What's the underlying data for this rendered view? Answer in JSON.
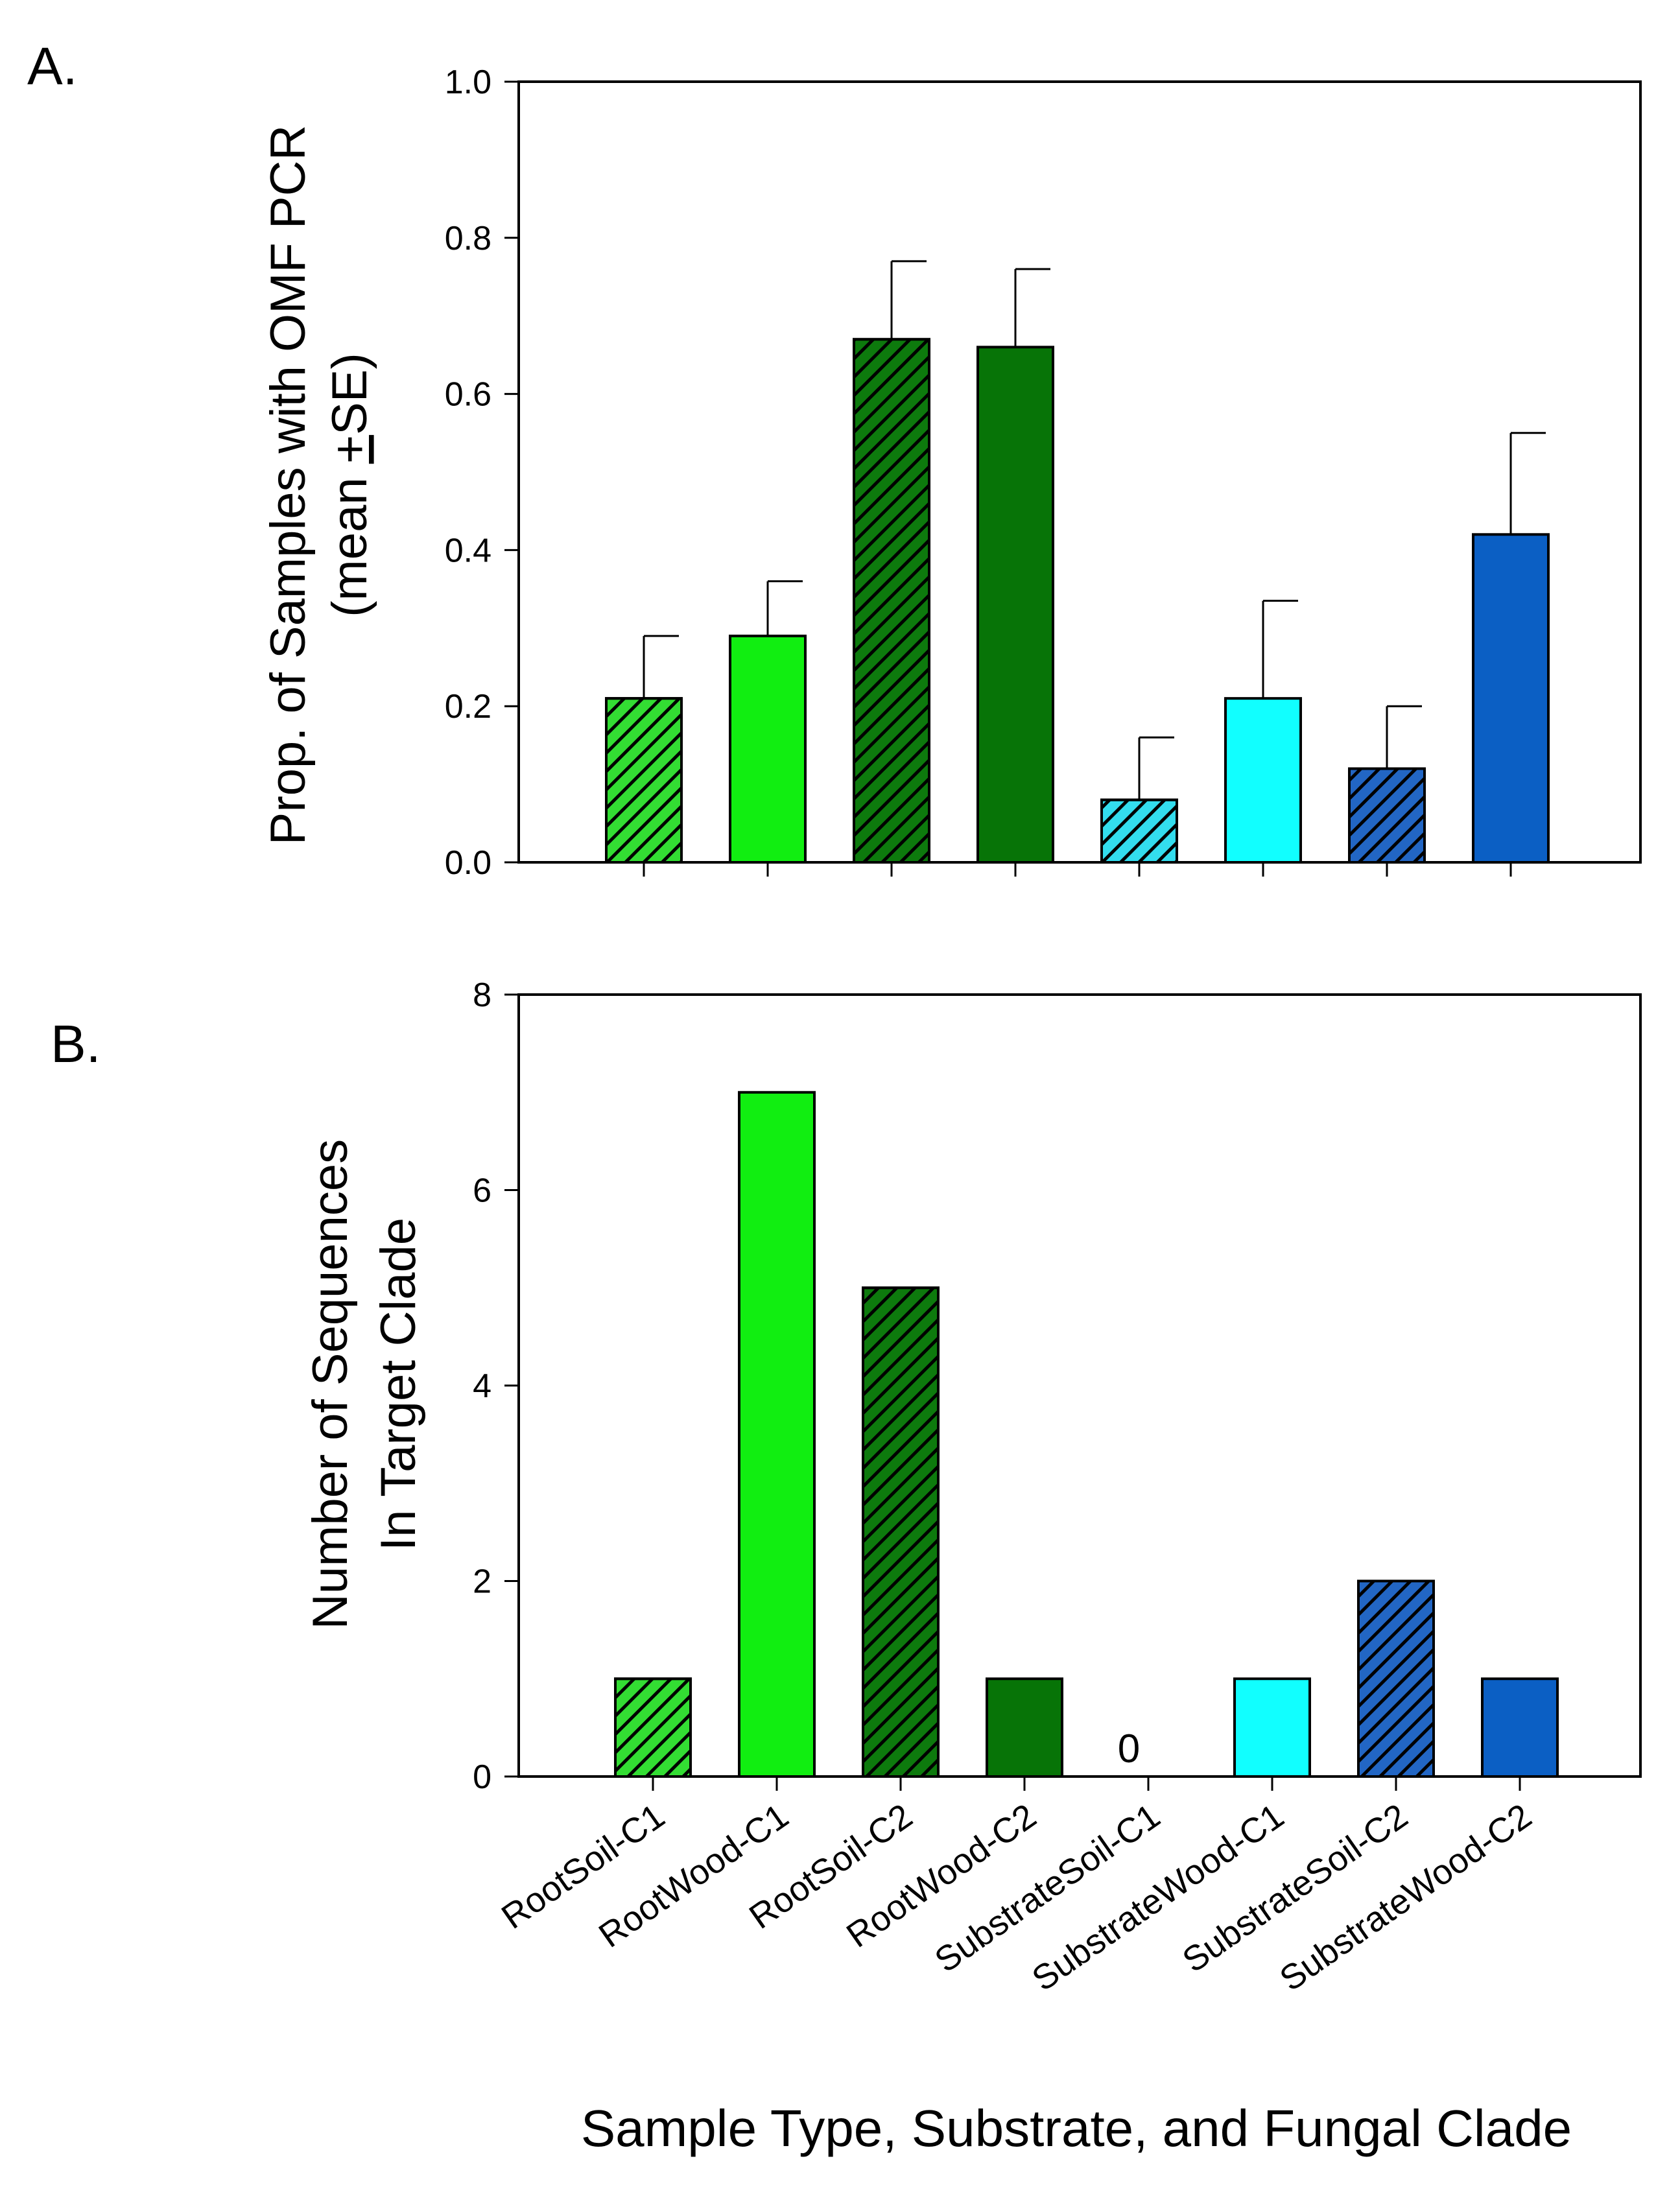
{
  "xlabel": "Sample Type, Substrate, and Fungal Clade",
  "categories": [
    "RootSoil-C1",
    "RootWood-C1",
    "RootSoil-C2",
    "RootWood-C2",
    "SubstrateSoil-C1",
    "SubstrateWood-C1",
    "SubstrateSoil-C2",
    "SubstrateWood-C2"
  ],
  "bar_styles": [
    {
      "color": "#33dd33",
      "hatched": true
    },
    {
      "color": "#11ee11",
      "hatched": false
    },
    {
      "color": "#0d7a0d",
      "hatched": true
    },
    {
      "color": "#077407",
      "hatched": false
    },
    {
      "color": "#33ddee",
      "hatched": true
    },
    {
      "color": "#11ffff",
      "hatched": false
    },
    {
      "color": "#2266c4",
      "hatched": true
    },
    {
      "color": "#0b5fc4",
      "hatched": false
    }
  ],
  "chart_data": [
    {
      "panel": "A.",
      "type": "bar",
      "title": "",
      "ylabel_line1": "Prop. of Samples with OMF PCR",
      "ylabel_line2_pre": "(mean ",
      "ylabel_line2_pm": "+",
      "ylabel_line2_post": "SE)",
      "ylim": [
        0,
        1.0
      ],
      "yticks": [
        "0.0",
        "0.2",
        "0.4",
        "0.6",
        "0.8",
        "1.0"
      ],
      "values": [
        0.21,
        0.29,
        0.67,
        0.66,
        0.08,
        0.21,
        0.12,
        0.42
      ],
      "errors": [
        0.08,
        0.07,
        0.1,
        0.1,
        0.08,
        0.125,
        0.08,
        0.13
      ]
    },
    {
      "panel": "B.",
      "type": "bar",
      "title": "",
      "ylabel_line1": "Number of Sequences",
      "ylabel_line2": "In Target Clade",
      "ylim": [
        0,
        8
      ],
      "yticks": [
        "0",
        "2",
        "4",
        "6",
        "8"
      ],
      "values": [
        1,
        7,
        5,
        1,
        0,
        1,
        2,
        1
      ],
      "annotations": [
        {
          "category_index": 4,
          "text": "0"
        }
      ]
    }
  ]
}
